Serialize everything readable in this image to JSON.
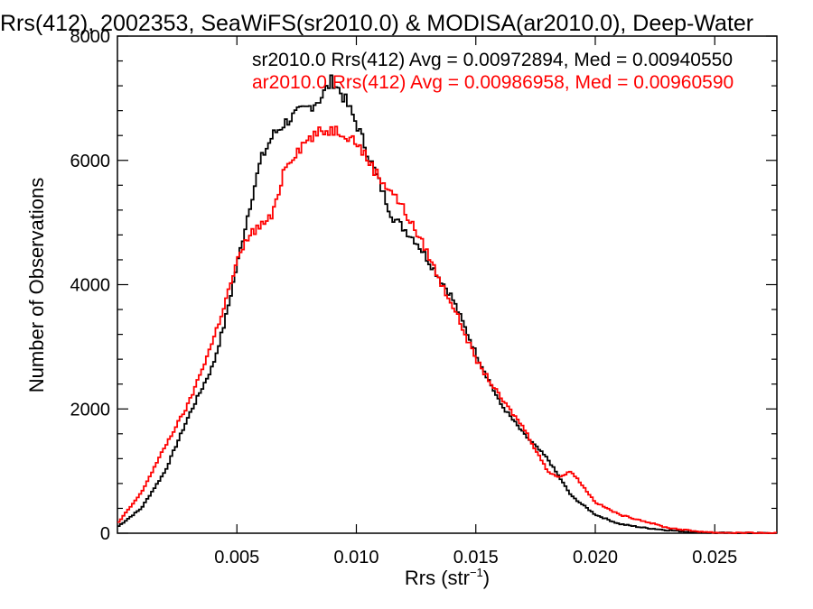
{
  "chart_data": {
    "type": "line",
    "title": "Rrs(412), 2002353, SeaWiFS(sr2010.0) & MODISA(ar2010.0), Deep-Water",
    "xlabel_main": "Rrs (str",
    "xlabel_exp": "−1",
    "xlabel_close": ")",
    "ylabel": "Number of Observations",
    "xlim": [
      0.0,
      0.0276
    ],
    "ylim": [
      0,
      8000
    ],
    "x_ticks": [
      {
        "value": 0.005,
        "label": "0.005"
      },
      {
        "value": 0.01,
        "label": "0.010"
      },
      {
        "value": 0.015,
        "label": "0.015"
      },
      {
        "value": 0.02,
        "label": "0.020"
      },
      {
        "value": 0.025,
        "label": "0.025"
      }
    ],
    "y_ticks": [
      {
        "value": 0,
        "label": "0"
      },
      {
        "value": 2000,
        "label": "2000"
      },
      {
        "value": 4000,
        "label": "4000"
      },
      {
        "value": 6000,
        "label": "6000"
      },
      {
        "value": 8000,
        "label": "8000"
      }
    ],
    "series": [
      {
        "name": "sr2010.0",
        "legend": "sr2010.0 Rrs(412) Avg = 0.00972894, Med = 0.00940550",
        "color": "#000000",
        "x": [
          0.0,
          0.001,
          0.002,
          0.003,
          0.004,
          0.0045,
          0.005,
          0.0055,
          0.006,
          0.0065,
          0.007,
          0.0075,
          0.008,
          0.0085,
          0.009,
          0.0095,
          0.01,
          0.0105,
          0.011,
          0.0115,
          0.012,
          0.0125,
          0.013,
          0.0135,
          0.014,
          0.015,
          0.016,
          0.017,
          0.018,
          0.0185,
          0.019,
          0.02,
          0.021,
          0.022,
          0.023,
          0.024,
          0.025,
          0.0276
        ],
        "y": [
          100,
          400,
          1000,
          1900,
          2700,
          3400,
          4300,
          5200,
          6000,
          6400,
          6600,
          6750,
          6850,
          7000,
          7300,
          7000,
          6600,
          6100,
          5600,
          5100,
          4900,
          4700,
          4400,
          4100,
          3800,
          2900,
          2100,
          1600,
          1200,
          900,
          600,
          300,
          150,
          90,
          50,
          20,
          5,
          0
        ]
      },
      {
        "name": "ar2010.0",
        "legend": "ar2010.0 Rrs(412) Avg = 0.00986958, Med = 0.00960590",
        "color": "#ff0000",
        "x": [
          0.0,
          0.001,
          0.002,
          0.003,
          0.004,
          0.0045,
          0.005,
          0.0055,
          0.006,
          0.0065,
          0.007,
          0.0075,
          0.008,
          0.0085,
          0.009,
          0.0095,
          0.01,
          0.0105,
          0.011,
          0.0115,
          0.012,
          0.0125,
          0.013,
          0.0135,
          0.014,
          0.015,
          0.016,
          0.017,
          0.018,
          0.0185,
          0.019,
          0.02,
          0.021,
          0.022,
          0.023,
          0.024,
          0.025,
          0.0276
        ],
        "y": [
          150,
          650,
          1400,
          2100,
          3100,
          3700,
          4350,
          4800,
          4950,
          5100,
          5900,
          6150,
          6350,
          6450,
          6500,
          6450,
          6300,
          6000,
          5700,
          5500,
          5200,
          4850,
          4500,
          4050,
          3700,
          2800,
          2200,
          1700,
          1000,
          900,
          1000,
          500,
          300,
          200,
          90,
          40,
          10,
          0
        ]
      }
    ],
    "grid": false,
    "legend_position": "top-right"
  }
}
